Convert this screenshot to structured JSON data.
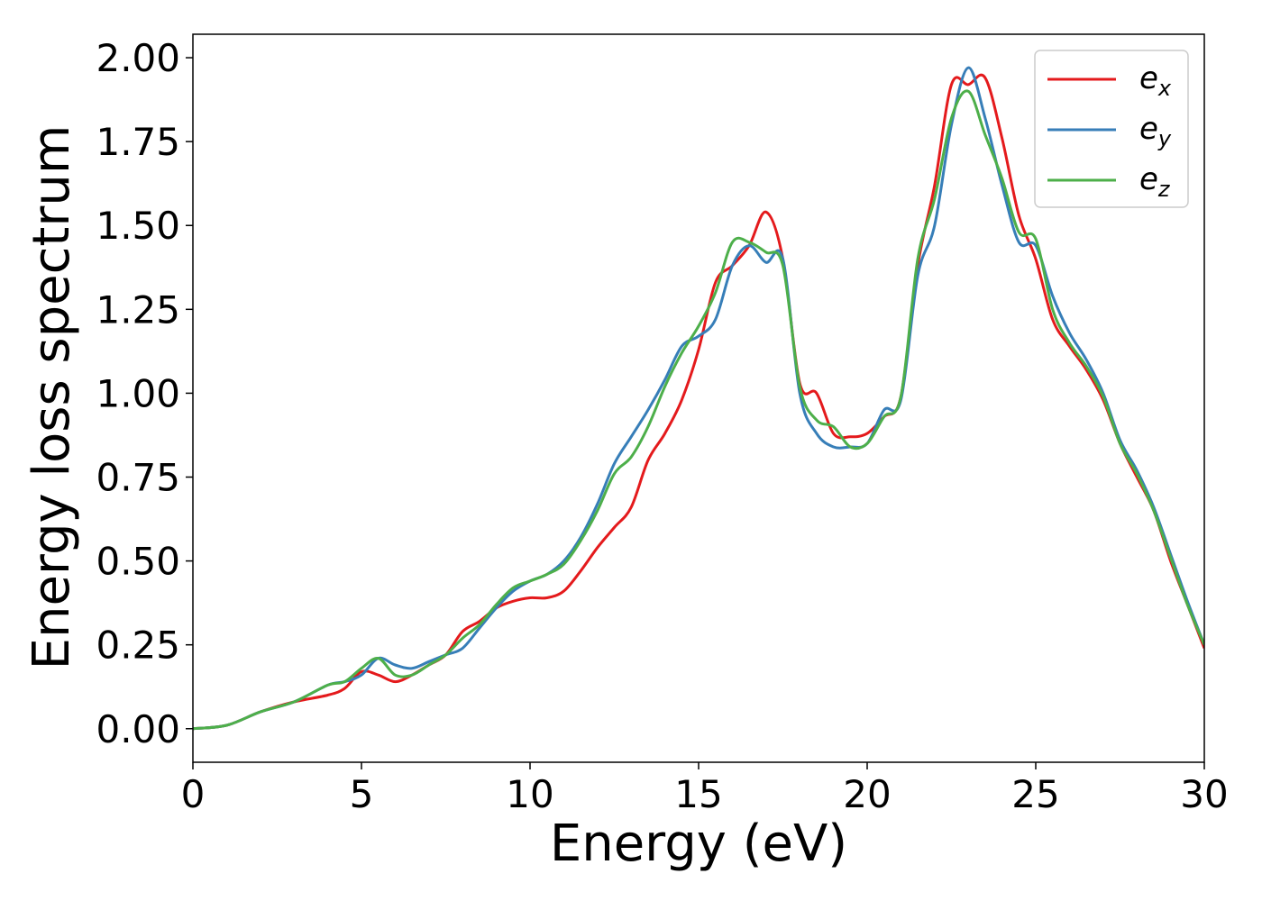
{
  "chart_data": {
    "type": "line",
    "xlabel": "Energy (eV)",
    "ylabel": "Energy loss spectrum",
    "xlim": [
      0,
      30
    ],
    "ylim": [
      -0.1,
      2.07
    ],
    "xticks": [
      0,
      5,
      10,
      15,
      20,
      25,
      30
    ],
    "yticks": [
      0.0,
      0.25,
      0.5,
      0.75,
      1.0,
      1.25,
      1.5,
      1.75,
      2.0
    ],
    "xtick_labels": [
      "0",
      "5",
      "10",
      "15",
      "20",
      "25",
      "30"
    ],
    "ytick_labels": [
      "0.00",
      "0.25",
      "0.50",
      "0.75",
      "1.00",
      "1.25",
      "1.50",
      "1.75",
      "2.00"
    ],
    "grid": false,
    "legend_position": "top-right",
    "series": [
      {
        "name": "e_x",
        "label_base": "e",
        "label_sub": "x",
        "color": "#e41a1c",
        "x": [
          0,
          1,
          2,
          3,
          4,
          4.5,
          5,
          5.5,
          6,
          6.5,
          7,
          7.5,
          8,
          8.5,
          9,
          9.5,
          10,
          10.5,
          11,
          11.5,
          12,
          12.5,
          13,
          13.5,
          14,
          14.5,
          15,
          15.5,
          16,
          16.5,
          17,
          17.5,
          18,
          18.5,
          19,
          19.5,
          20,
          20.5,
          21,
          21.5,
          22,
          22.5,
          23,
          23.5,
          24,
          24.5,
          25,
          25.5,
          26,
          26.5,
          27,
          27.5,
          28,
          28.5,
          29,
          29.5,
          30
        ],
        "y": [
          0.0,
          0.01,
          0.05,
          0.08,
          0.1,
          0.12,
          0.17,
          0.16,
          0.14,
          0.16,
          0.19,
          0.22,
          0.29,
          0.32,
          0.36,
          0.38,
          0.39,
          0.39,
          0.41,
          0.47,
          0.54,
          0.6,
          0.66,
          0.8,
          0.88,
          0.98,
          1.13,
          1.33,
          1.38,
          1.44,
          1.54,
          1.4,
          1.03,
          1.0,
          0.88,
          0.87,
          0.88,
          0.93,
          0.99,
          1.38,
          1.62,
          1.92,
          1.92,
          1.94,
          1.76,
          1.53,
          1.4,
          1.22,
          1.14,
          1.07,
          0.98,
          0.85,
          0.75,
          0.65,
          0.5,
          0.37,
          0.24
        ]
      },
      {
        "name": "e_y",
        "label_base": "e",
        "label_sub": "y",
        "color": "#377eb8",
        "x": [
          0,
          1,
          2,
          3,
          4,
          4.5,
          5,
          5.5,
          6,
          6.5,
          7,
          7.5,
          8,
          8.5,
          9,
          9.5,
          10,
          10.5,
          11,
          11.5,
          12,
          12.5,
          13,
          13.5,
          14,
          14.5,
          15,
          15.5,
          16,
          16.5,
          17,
          17.5,
          18,
          18.5,
          19,
          19.5,
          20,
          20.5,
          21,
          21.5,
          22,
          22.5,
          23,
          23.5,
          24,
          24.5,
          25,
          25.5,
          26,
          26.5,
          27,
          27.5,
          28,
          28.5,
          29,
          29.5,
          30
        ],
        "y": [
          0.0,
          0.01,
          0.05,
          0.08,
          0.13,
          0.14,
          0.16,
          0.21,
          0.19,
          0.18,
          0.2,
          0.22,
          0.24,
          0.3,
          0.36,
          0.41,
          0.44,
          0.46,
          0.5,
          0.57,
          0.67,
          0.79,
          0.87,
          0.95,
          1.04,
          1.14,
          1.17,
          1.22,
          1.38,
          1.44,
          1.39,
          1.4,
          1.0,
          0.88,
          0.84,
          0.84,
          0.85,
          0.95,
          0.98,
          1.35,
          1.5,
          1.8,
          1.97,
          1.82,
          1.62,
          1.45,
          1.44,
          1.29,
          1.18,
          1.1,
          1.0,
          0.86,
          0.77,
          0.66,
          0.52,
          0.38,
          0.25
        ]
      },
      {
        "name": "e_z",
        "label_base": "e",
        "label_sub": "z",
        "color": "#4daf4a",
        "x": [
          0,
          1,
          2,
          3,
          4,
          4.5,
          5,
          5.5,
          6,
          6.5,
          7,
          7.5,
          8,
          8.5,
          9,
          9.5,
          10,
          10.5,
          11,
          11.5,
          12,
          12.5,
          13,
          13.5,
          14,
          14.5,
          15,
          15.5,
          16,
          16.5,
          17,
          17.5,
          18,
          18.5,
          19,
          19.5,
          20,
          20.5,
          21,
          21.5,
          22,
          22.5,
          23,
          23.5,
          24,
          24.5,
          25,
          25.5,
          26,
          26.5,
          27,
          27.5,
          28,
          28.5,
          29,
          29.5,
          30
        ],
        "y": [
          0.0,
          0.01,
          0.05,
          0.08,
          0.13,
          0.14,
          0.18,
          0.21,
          0.16,
          0.16,
          0.19,
          0.22,
          0.27,
          0.31,
          0.37,
          0.42,
          0.44,
          0.46,
          0.49,
          0.56,
          0.65,
          0.76,
          0.81,
          0.9,
          1.02,
          1.12,
          1.2,
          1.3,
          1.45,
          1.45,
          1.42,
          1.38,
          1.02,
          0.92,
          0.9,
          0.84,
          0.85,
          0.93,
          0.99,
          1.4,
          1.58,
          1.82,
          1.9,
          1.77,
          1.64,
          1.48,
          1.46,
          1.25,
          1.15,
          1.08,
          0.99,
          0.85,
          0.76,
          0.65,
          0.51,
          0.37,
          0.25
        ]
      }
    ]
  }
}
